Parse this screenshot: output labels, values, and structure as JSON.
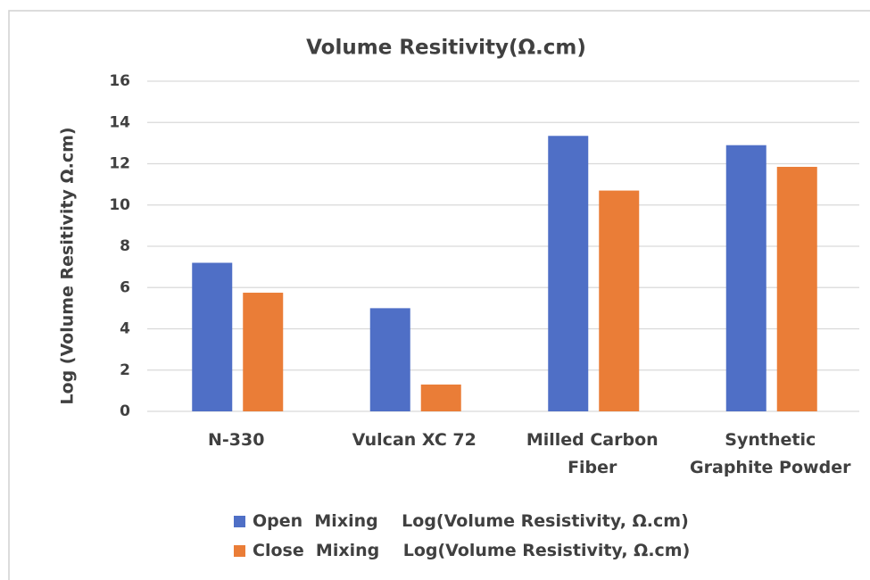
{
  "chart_data": {
    "type": "bar",
    "title": "Volume Resitivity(Ω.cm)",
    "y_label": "Log (Volume Resitivity  Ω.cm)",
    "categories": [
      "N-330",
      "Vulcan XC 72",
      "Milled Carbon Fiber",
      "Synthetic Graphite Powder"
    ],
    "series": [
      {
        "name": "Open  Mixing    Log(Volume Resistivity, Ω.cm)",
        "color": "#4f6fc6",
        "values": [
          7.2,
          5.0,
          13.35,
          12.9
        ]
      },
      {
        "name": "Close  Mixing    Log(Volume Resistivity, Ω.cm)",
        "color": "#ea7d37",
        "values": [
          5.75,
          1.3,
          10.7,
          11.85
        ]
      }
    ],
    "ylim": [
      0,
      16
    ],
    "yticks": [
      0,
      2,
      4,
      6,
      8,
      10,
      12,
      14,
      16
    ],
    "grid": true,
    "legend": "bottom"
  }
}
